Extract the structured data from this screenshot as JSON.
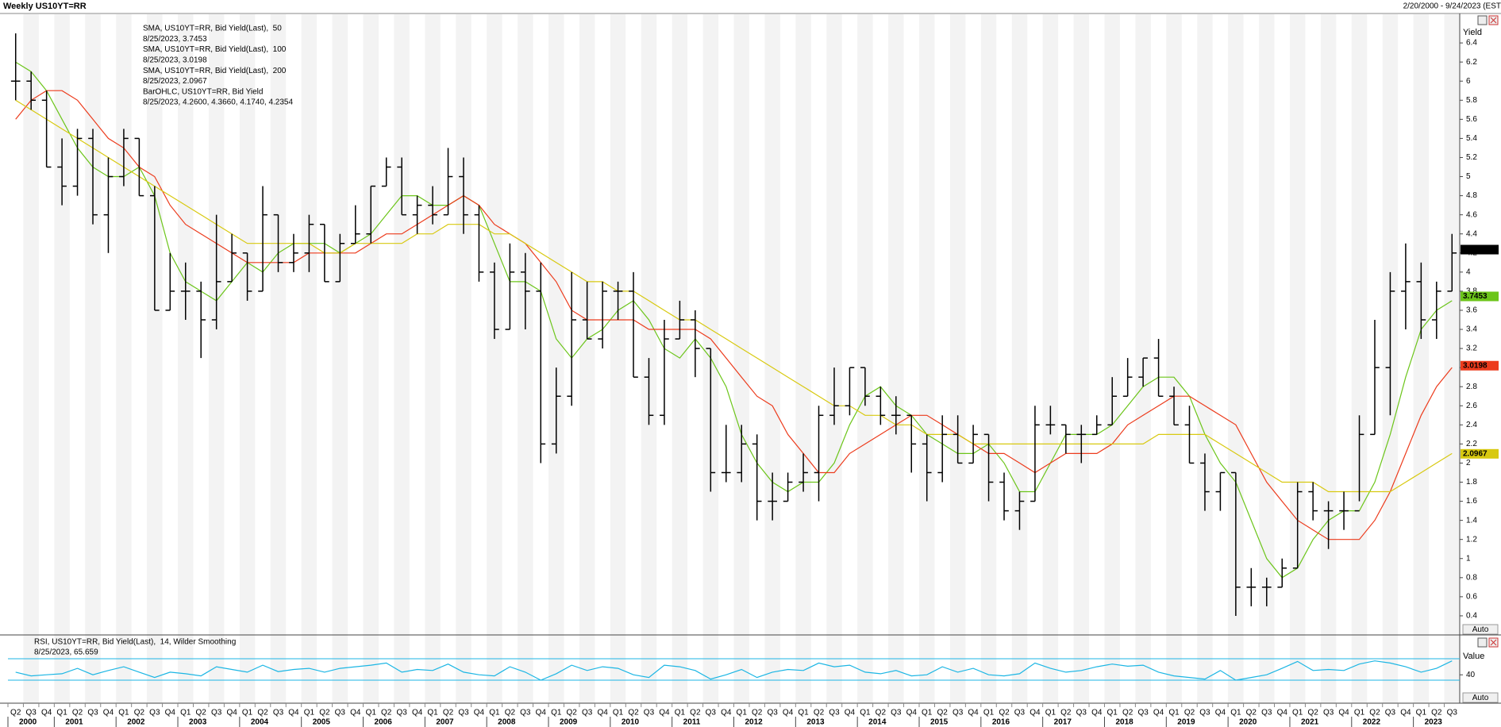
{
  "chart_data": {
    "type": "ohlc",
    "title": "Weekly US10YT=RR",
    "date_range": "2/20/2000 - 9/24/2023 (EST",
    "y_axis_label": "Yield",
    "auto_label": "Auto",
    "ylim": [
      0.2,
      6.7
    ],
    "yticks": [
      0.4,
      0.6,
      0.8,
      1,
      1.2,
      1.4,
      1.6,
      1.8,
      2,
      2.2,
      2.4,
      2.6,
      2.8,
      3,
      3.2,
      3.4,
      3.6,
      3.8,
      4,
      4.2,
      4.4,
      4.6,
      4.8,
      5,
      5.2,
      5.4,
      5.6,
      5.8,
      6,
      6.2,
      6.4
    ],
    "categories": [
      "Q2",
      "Q3",
      "Q4",
      "Q1",
      "Q2",
      "Q3",
      "Q4",
      "Q1",
      "Q2",
      "Q3",
      "Q4",
      "Q1",
      "Q2",
      "Q3",
      "Q4",
      "Q1",
      "Q2",
      "Q3",
      "Q4",
      "Q1",
      "Q2",
      "Q3",
      "Q4",
      "Q1",
      "Q2",
      "Q3",
      "Q4",
      "Q1",
      "Q2",
      "Q3",
      "Q4",
      "Q1",
      "Q2",
      "Q3",
      "Q4",
      "Q1",
      "Q2",
      "Q3",
      "Q4",
      "Q1",
      "Q2",
      "Q3",
      "Q4",
      "Q1",
      "Q2",
      "Q3",
      "Q4",
      "Q1",
      "Q2",
      "Q3",
      "Q4",
      "Q1",
      "Q2",
      "Q3",
      "Q4",
      "Q1",
      "Q2",
      "Q3",
      "Q4",
      "Q1",
      "Q2",
      "Q3",
      "Q4",
      "Q1",
      "Q2",
      "Q3",
      "Q4",
      "Q1",
      "Q2",
      "Q3",
      "Q4",
      "Q1",
      "Q2",
      "Q3",
      "Q4",
      "Q1",
      "Q2",
      "Q3",
      "Q4",
      "Q1",
      "Q2",
      "Q3",
      "Q4",
      "Q1",
      "Q2",
      "Q3",
      "Q4",
      "Q1",
      "Q2",
      "Q3",
      "Q4",
      "Q1",
      "Q2",
      "Q3"
    ],
    "years": [
      "2000",
      "2001",
      "2002",
      "2003",
      "2004",
      "2005",
      "2006",
      "2007",
      "2008",
      "2009",
      "2010",
      "2011",
      "2012",
      "2013",
      "2014",
      "2015",
      "2016",
      "2017",
      "2018",
      "2019",
      "2020",
      "2021",
      "2022",
      "2023"
    ],
    "ohlc": {
      "name": "BarOHLC, US10YT=RR, Bid Yield",
      "legend_value": "8/25/2023, 4.2600, 4.3660, 4.1740, 4.2354",
      "color": "#000000",
      "last_value": 4.2354,
      "open": [
        6.0,
        6.0,
        5.8,
        5.1,
        4.9,
        5.4,
        4.6,
        5.0,
        5.4,
        4.8,
        3.6,
        3.8,
        3.8,
        3.5,
        3.9,
        4.2,
        3.8,
        4.6,
        4.1,
        4.2,
        4.5,
        3.9,
        4.3,
        4.4,
        4.9,
        5.1,
        4.6,
        4.7,
        4.6,
        5.0,
        4.6,
        4.0,
        3.4,
        4.0,
        3.8,
        2.2,
        2.7,
        3.5,
        3.3,
        3.8,
        3.8,
        2.9,
        2.5,
        3.3,
        3.5,
        3.2,
        1.9,
        1.9,
        2.2,
        1.6,
        1.6,
        1.8,
        1.9,
        2.5,
        2.6,
        3.0,
        2.7,
        2.5,
        2.5,
        2.2,
        1.9,
        2.3,
        2.0,
        2.3,
        1.8,
        1.5,
        1.6,
        2.4,
        2.4,
        2.3,
        2.3,
        2.4,
        2.7,
        2.9,
        3.1,
        2.7,
        2.4,
        2.0,
        1.7,
        1.9,
        0.7,
        0.7,
        0.7,
        0.9,
        1.7,
        1.5,
        1.5,
        1.5,
        2.3,
        3.0,
        3.8,
        3.9,
        3.5,
        3.8
      ],
      "high": [
        6.5,
        6.1,
        5.9,
        5.4,
        5.5,
        5.5,
        5.2,
        5.5,
        5.4,
        4.9,
        4.2,
        4.1,
        3.9,
        4.6,
        4.4,
        4.2,
        4.9,
        4.6,
        4.4,
        4.6,
        4.5,
        4.4,
        4.7,
        4.9,
        5.2,
        5.2,
        4.8,
        4.9,
        5.3,
        5.2,
        4.7,
        4.1,
        4.3,
        4.2,
        4.1,
        3.0,
        4.0,
        3.9,
        3.9,
        3.9,
        4.0,
        3.1,
        3.5,
        3.7,
        3.6,
        3.2,
        2.4,
        2.4,
        2.3,
        1.9,
        1.9,
        2.1,
        2.6,
        3.0,
        3.0,
        3.0,
        2.8,
        2.7,
        2.5,
        2.3,
        2.5,
        2.5,
        2.4,
        2.3,
        1.9,
        1.7,
        2.6,
        2.6,
        2.4,
        2.4,
        2.5,
        2.9,
        3.1,
        3.1,
        3.3,
        2.8,
        2.6,
        2.1,
        1.9,
        1.9,
        0.9,
        0.8,
        1.0,
        1.8,
        1.8,
        1.6,
        1.7,
        2.5,
        3.5,
        4.0,
        4.3,
        4.1,
        3.9,
        4.4
      ],
      "low": [
        5.8,
        5.7,
        5.1,
        4.7,
        4.8,
        4.5,
        4.2,
        4.9,
        4.8,
        3.6,
        3.6,
        3.5,
        3.1,
        3.4,
        3.9,
        3.7,
        3.8,
        4.0,
        4.0,
        4.0,
        3.9,
        3.9,
        4.3,
        4.3,
        4.9,
        4.6,
        4.4,
        4.5,
        4.6,
        4.4,
        3.9,
        3.3,
        3.4,
        3.4,
        2.0,
        2.1,
        2.6,
        3.3,
        3.2,
        3.5,
        2.9,
        2.4,
        2.4,
        3.3,
        2.9,
        1.7,
        1.8,
        1.8,
        1.4,
        1.4,
        1.6,
        1.7,
        1.6,
        2.4,
        2.5,
        2.6,
        2.4,
        2.3,
        1.9,
        1.6,
        1.8,
        2.0,
        2.0,
        1.6,
        1.4,
        1.3,
        1.6,
        2.3,
        2.1,
        2.0,
        2.3,
        2.4,
        2.7,
        2.8,
        2.7,
        2.4,
        2.0,
        1.5,
        1.5,
        0.4,
        0.5,
        0.5,
        0.7,
        0.9,
        1.4,
        1.1,
        1.3,
        1.6,
        2.3,
        2.5,
        3.4,
        3.3,
        3.3,
        3.8
      ],
      "close": [
        6.0,
        5.8,
        5.1,
        4.9,
        5.4,
        4.6,
        5.0,
        5.4,
        4.8,
        3.6,
        3.8,
        3.8,
        3.5,
        3.9,
        4.2,
        3.8,
        4.6,
        4.1,
        4.2,
        4.5,
        3.9,
        4.3,
        4.4,
        4.9,
        5.1,
        4.6,
        4.7,
        4.6,
        5.0,
        4.6,
        4.0,
        3.4,
        4.0,
        3.8,
        2.2,
        2.7,
        3.5,
        3.3,
        3.8,
        3.8,
        2.9,
        2.5,
        3.3,
        3.5,
        3.2,
        1.9,
        1.9,
        2.2,
        1.6,
        1.6,
        1.8,
        1.9,
        2.5,
        2.6,
        3.0,
        2.7,
        2.5,
        2.5,
        2.2,
        1.9,
        2.3,
        2.0,
        2.3,
        1.8,
        1.5,
        1.6,
        2.4,
        2.4,
        2.3,
        2.3,
        2.4,
        2.7,
        2.9,
        3.1,
        2.7,
        2.4,
        2.0,
        1.7,
        1.9,
        0.7,
        0.7,
        0.7,
        0.9,
        1.7,
        1.5,
        1.5,
        1.5,
        2.3,
        3.0,
        3.8,
        3.9,
        3.5,
        3.8,
        4.2
      ]
    },
    "series": [
      {
        "name": "SMA, US10YT=RR, Bid Yield(Last),  50",
        "legend_value": "8/25/2023, 3.7453",
        "color": "#6cc51a",
        "last_value": 3.7453,
        "values": [
          6.2,
          6.1,
          5.9,
          5.6,
          5.3,
          5.1,
          5.0,
          5.0,
          5.1,
          4.8,
          4.2,
          3.9,
          3.8,
          3.7,
          3.9,
          4.1,
          4.0,
          4.2,
          4.3,
          4.3,
          4.3,
          4.2,
          4.3,
          4.4,
          4.6,
          4.8,
          4.8,
          4.7,
          4.7,
          4.8,
          4.7,
          4.3,
          3.9,
          3.9,
          3.8,
          3.3,
          3.1,
          3.3,
          3.4,
          3.6,
          3.7,
          3.5,
          3.2,
          3.1,
          3.3,
          3.1,
          2.8,
          2.3,
          2.0,
          1.8,
          1.7,
          1.8,
          1.8,
          2.0,
          2.4,
          2.7,
          2.8,
          2.6,
          2.5,
          2.3,
          2.2,
          2.1,
          2.1,
          2.2,
          2.0,
          1.7,
          1.7,
          2.0,
          2.3,
          2.3,
          2.3,
          2.4,
          2.6,
          2.8,
          2.9,
          2.9,
          2.7,
          2.3,
          2.0,
          1.8,
          1.4,
          1.0,
          0.8,
          0.9,
          1.2,
          1.4,
          1.5,
          1.5,
          1.8,
          2.3,
          2.9,
          3.4,
          3.6,
          3.7
        ]
      },
      {
        "name": "SMA, US10YT=RR, Bid Yield(Last),  100",
        "legend_value": "8/25/2023, 3.0198",
        "color": "#ec3b1c",
        "last_value": 3.0198,
        "values": [
          5.6,
          5.8,
          5.9,
          5.9,
          5.8,
          5.6,
          5.4,
          5.3,
          5.1,
          5.0,
          4.7,
          4.5,
          4.4,
          4.3,
          4.2,
          4.1,
          4.1,
          4.1,
          4.1,
          4.2,
          4.2,
          4.2,
          4.2,
          4.3,
          4.4,
          4.4,
          4.5,
          4.6,
          4.7,
          4.8,
          4.7,
          4.5,
          4.4,
          4.3,
          4.1,
          3.9,
          3.6,
          3.5,
          3.5,
          3.5,
          3.5,
          3.4,
          3.4,
          3.4,
          3.4,
          3.3,
          3.1,
          2.9,
          2.7,
          2.6,
          2.3,
          2.1,
          1.9,
          1.9,
          2.1,
          2.2,
          2.3,
          2.4,
          2.5,
          2.5,
          2.4,
          2.3,
          2.2,
          2.1,
          2.1,
          2.0,
          1.9,
          2.0,
          2.1,
          2.1,
          2.1,
          2.2,
          2.4,
          2.5,
          2.6,
          2.7,
          2.7,
          2.6,
          2.5,
          2.4,
          2.1,
          1.8,
          1.6,
          1.4,
          1.3,
          1.2,
          1.2,
          1.2,
          1.4,
          1.7,
          2.1,
          2.5,
          2.8,
          3.0
        ]
      },
      {
        "name": "SMA, US10YT=RR, Bid Yield(Last),  200",
        "legend_value": "8/25/2023, 2.0967",
        "color": "#d8c910",
        "last_value": 2.0967,
        "values": [
          5.8,
          5.7,
          5.6,
          5.5,
          5.4,
          5.3,
          5.2,
          5.1,
          5.0,
          4.9,
          4.8,
          4.7,
          4.6,
          4.5,
          4.4,
          4.3,
          4.3,
          4.3,
          4.3,
          4.3,
          4.2,
          4.2,
          4.3,
          4.3,
          4.3,
          4.3,
          4.4,
          4.4,
          4.5,
          4.5,
          4.5,
          4.4,
          4.4,
          4.3,
          4.2,
          4.1,
          4.0,
          3.9,
          3.9,
          3.8,
          3.8,
          3.7,
          3.6,
          3.5,
          3.5,
          3.4,
          3.3,
          3.2,
          3.1,
          3.0,
          2.9,
          2.8,
          2.7,
          2.6,
          2.6,
          2.5,
          2.5,
          2.4,
          2.4,
          2.3,
          2.3,
          2.3,
          2.2,
          2.2,
          2.2,
          2.2,
          2.2,
          2.2,
          2.2,
          2.2,
          2.2,
          2.2,
          2.2,
          2.2,
          2.3,
          2.3,
          2.3,
          2.3,
          2.2,
          2.1,
          2.0,
          1.9,
          1.8,
          1.8,
          1.8,
          1.7,
          1.7,
          1.7,
          1.7,
          1.7,
          1.8,
          1.9,
          2.0,
          2.1
        ]
      }
    ],
    "rsi": {
      "name": "RSI, US10YT=RR, Bid Yield(Last),  14, Wilder Smoothing",
      "legend_value": "8/25/2023, 65.659",
      "axis_label": "Value",
      "color": "#1cb6e4",
      "ylim": [
        -13,
        110
      ],
      "yticks": [
        40
      ],
      "levels": [
        30,
        70
      ],
      "values": [
        45,
        38,
        40,
        42,
        52,
        40,
        48,
        55,
        45,
        35,
        45,
        42,
        38,
        55,
        50,
        45,
        58,
        46,
        50,
        52,
        45,
        52,
        55,
        58,
        62,
        45,
        50,
        48,
        60,
        45,
        40,
        38,
        55,
        45,
        30,
        42,
        58,
        48,
        55,
        52,
        40,
        35,
        58,
        55,
        48,
        32,
        40,
        50,
        35,
        45,
        50,
        48,
        62,
        55,
        58,
        45,
        42,
        48,
        38,
        40,
        55,
        45,
        52,
        40,
        38,
        42,
        62,
        52,
        45,
        48,
        55,
        60,
        56,
        58,
        45,
        38,
        35,
        32,
        48,
        30,
        35,
        40,
        52,
        65,
        48,
        50,
        48,
        60,
        66,
        62,
        55,
        45,
        52,
        66
      ]
    }
  }
}
